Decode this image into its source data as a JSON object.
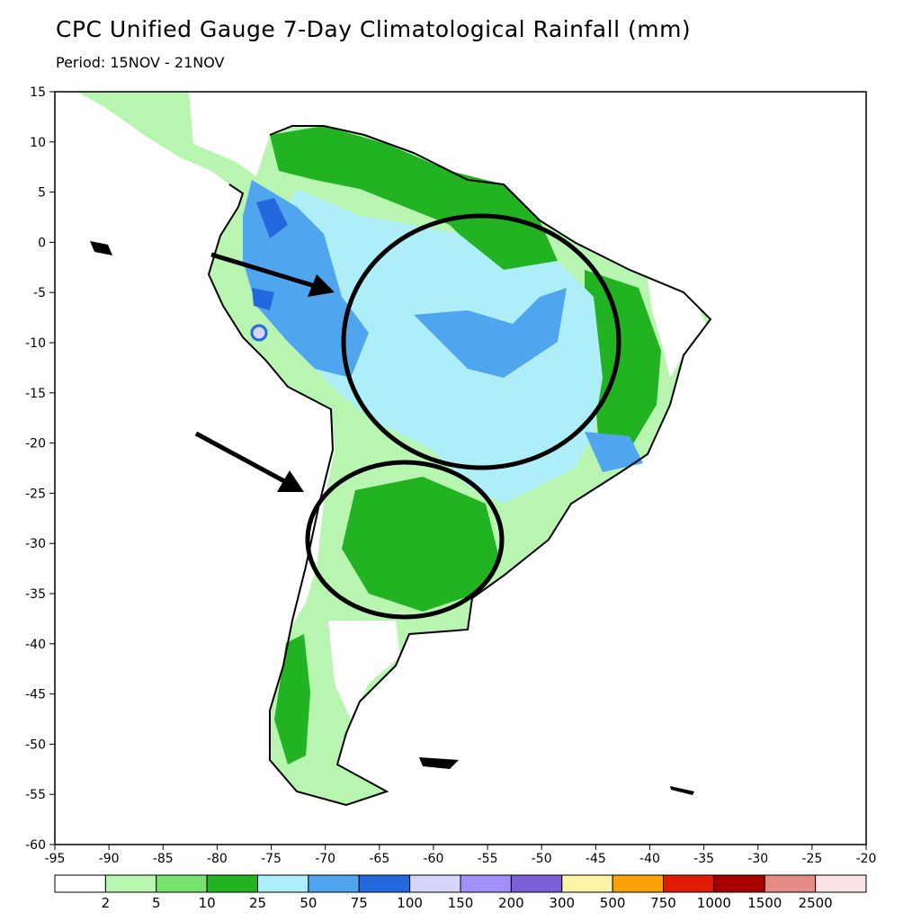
{
  "title": "CPC Unified Gauge 7-Day Climatological Rainfall (mm)",
  "subtitle": "Period: 15NOV - 21NOV",
  "map": {
    "lon_range": [
      -95,
      -20
    ],
    "lat_range": [
      -60,
      15
    ],
    "lon_ticks": [
      "-95",
      "-90",
      "-85",
      "-80",
      "-75",
      "-70",
      "-65",
      "-60",
      "-55",
      "-50",
      "-45",
      "-40",
      "-35",
      "-30",
      "-25",
      "-20"
    ],
    "lat_ticks": [
      "15",
      "10",
      "5",
      "0",
      "-5",
      "-10",
      "-15",
      "-20",
      "-25",
      "-30",
      "-35",
      "-40",
      "-45",
      "-50",
      "-55",
      "-60"
    ]
  },
  "colorbar": {
    "labels": [
      "2",
      "5",
      "10",
      "25",
      "50",
      "75",
      "100",
      "150",
      "200",
      "300",
      "500",
      "750",
      "1000",
      "1500",
      "2500"
    ],
    "colors": [
      "#ffffff",
      "#b7f5b1",
      "#77e36c",
      "#22b323",
      "#aeeef9",
      "#4fa6ef",
      "#2468e0",
      "#d6d6fb",
      "#a38ff8",
      "#7b5fd8",
      "#fbf4a4",
      "#faa105",
      "#e01c06",
      "#a80001",
      "#e58b86",
      "#fbe1e4"
    ]
  },
  "annotations": {
    "circles": [
      "amazon-basin-circle",
      "la-plata-basin-circle"
    ],
    "arrows": [
      "arrow-to-amazon",
      "arrow-to-la-plata"
    ]
  }
}
